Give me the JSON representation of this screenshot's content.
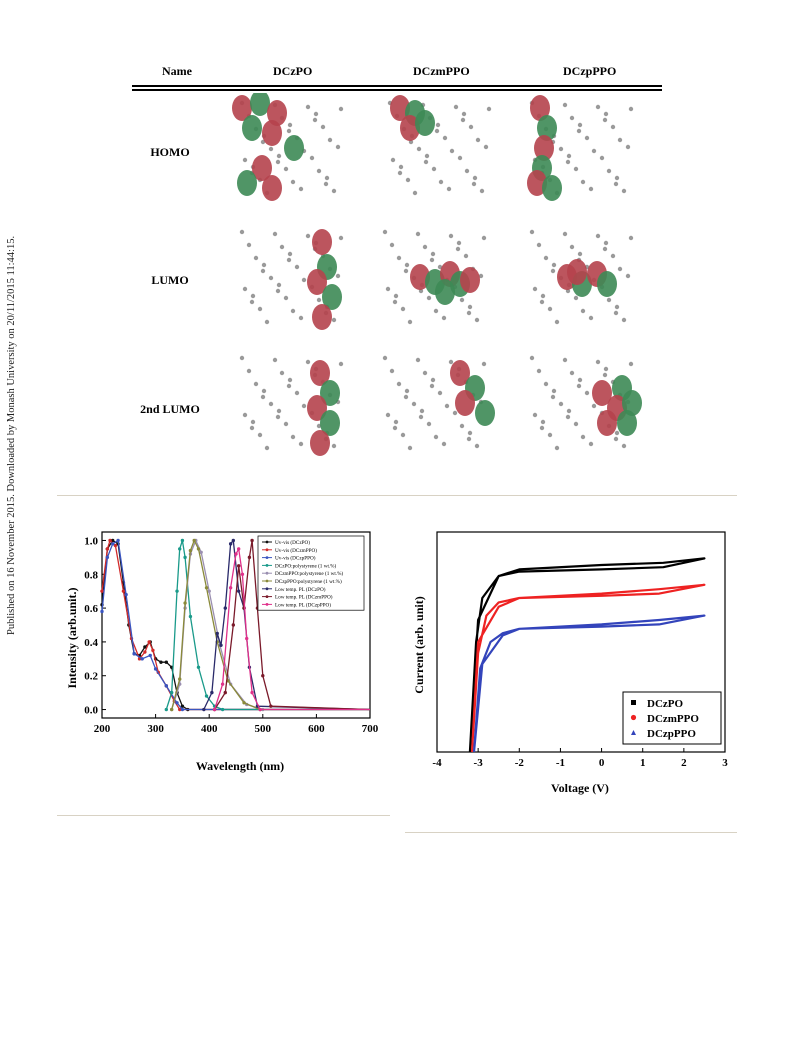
{
  "side_note": "Published on 16 November 2015. Downloaded by Monash University on 20/11/2015 11:44:15.",
  "table": {
    "headers": [
      "Name",
      "DCzPO",
      "DCzmPPO",
      "DCzpPPO"
    ],
    "rows": [
      "HOMO",
      "LUMO",
      "2nd LUMO"
    ]
  },
  "colors": {
    "lobe_red": "#b5424c",
    "lobe_green": "#3d8a55",
    "atom": "#9a9a9a",
    "rule": "#d8d2c4"
  },
  "chart_data": [
    {
      "type": "line",
      "xlabel": "Wavelength (nm)",
      "ylabel": "Intensity (arb.unit.)",
      "xlim": [
        200,
        700
      ],
      "ylim": [
        -0.05,
        1.05
      ],
      "xticks": [
        200,
        300,
        400,
        500,
        600,
        700
      ],
      "yticks": [
        0.0,
        0.2,
        0.4,
        0.6,
        0.8,
        1.0
      ],
      "legend_position": "top-right",
      "series": [
        {
          "name": "Uv-vis (DCzPO)",
          "color": "#111111",
          "x": [
            200,
            210,
            220,
            230,
            240,
            250,
            260,
            270,
            280,
            290,
            300,
            310,
            320,
            330,
            340,
            350,
            360,
            700
          ],
          "y": [
            0.62,
            0.95,
            1.0,
            0.98,
            0.75,
            0.5,
            0.33,
            0.32,
            0.37,
            0.4,
            0.3,
            0.28,
            0.28,
            0.25,
            0.1,
            0.02,
            0.0,
            0.0
          ]
        },
        {
          "name": "Uv-vis (DCzmPPO)",
          "color": "#d22a2a",
          "x": [
            200,
            210,
            215,
            225,
            240,
            255,
            270,
            280,
            288,
            295,
            305,
            320,
            335,
            345,
            700
          ],
          "y": [
            0.7,
            0.95,
            1.0,
            0.97,
            0.7,
            0.42,
            0.3,
            0.34,
            0.4,
            0.35,
            0.22,
            0.14,
            0.05,
            0.0,
            0.0
          ]
        },
        {
          "name": "Uv-vis (DCzpPPO)",
          "color": "#3a55c0",
          "x": [
            200,
            210,
            220,
            230,
            245,
            260,
            275,
            290,
            300,
            320,
            340,
            350,
            700
          ],
          "y": [
            0.58,
            0.9,
            0.98,
            1.0,
            0.68,
            0.33,
            0.3,
            0.32,
            0.24,
            0.14,
            0.04,
            0.0,
            0.0
          ]
        },
        {
          "name": "DCzPO:polystyrene (1 wt.%)",
          "color": "#1a9a8a",
          "x": [
            320,
            330,
            340,
            345,
            350,
            355,
            365,
            380,
            395,
            410,
            425,
            700
          ],
          "y": [
            0.0,
            0.1,
            0.7,
            0.95,
            1.0,
            0.9,
            0.55,
            0.25,
            0.08,
            0.02,
            0.0,
            0.0
          ]
        },
        {
          "name": "DCzmPPO:polystyrene (1 wt.%)",
          "color": "#9a8fb0",
          "x": [
            330,
            345,
            355,
            365,
            375,
            385,
            400,
            420,
            440,
            470,
            500,
            700
          ],
          "y": [
            0.0,
            0.15,
            0.6,
            0.92,
            1.0,
            0.93,
            0.7,
            0.38,
            0.15,
            0.03,
            0.0,
            0.0
          ]
        },
        {
          "name": "DCzpPPO:polystyrene (1 wt.%)",
          "color": "#8a8a3a",
          "x": [
            330,
            345,
            355,
            365,
            372,
            380,
            395,
            415,
            435,
            465,
            495,
            700
          ],
          "y": [
            0.0,
            0.18,
            0.63,
            0.94,
            1.0,
            0.95,
            0.72,
            0.4,
            0.17,
            0.04,
            0.0,
            0.0
          ]
        },
        {
          "name": "Low temp. PL (DCzPO)",
          "color": "#2a2a6a",
          "x": [
            390,
            405,
            415,
            422,
            430,
            440,
            445,
            455,
            465,
            475,
            490,
            700
          ],
          "y": [
            0.0,
            0.1,
            0.45,
            0.38,
            0.6,
            0.98,
            1.0,
            0.7,
            0.6,
            0.25,
            0.02,
            0.0
          ]
        },
        {
          "name": "Low temp. PL (DCzmPPO)",
          "color": "#7a1a2a",
          "x": [
            410,
            430,
            445,
            455,
            465,
            475,
            480,
            490,
            500,
            515,
            700
          ],
          "y": [
            0.0,
            0.1,
            0.5,
            0.85,
            0.6,
            0.9,
            1.0,
            0.6,
            0.2,
            0.02,
            0.0
          ]
        },
        {
          "name": "Low temp. PL (DCzpPPO)",
          "color": "#e0308a",
          "x": [
            410,
            425,
            440,
            450,
            455,
            462,
            470,
            480,
            495,
            700
          ],
          "y": [
            0.0,
            0.15,
            0.72,
            0.92,
            0.95,
            0.8,
            0.42,
            0.1,
            0.0,
            0.0
          ]
        }
      ]
    },
    {
      "type": "line",
      "xlabel": "Voltage (V)",
      "ylabel": "Current (arb. unit)",
      "xlim": [
        -4,
        3
      ],
      "ylim": [
        0,
        1
      ],
      "xticks": [
        -4,
        -3,
        -2,
        -1,
        0,
        1,
        2,
        3
      ],
      "legend_position": "bottom-right",
      "series": [
        {
          "name": "DCzPO",
          "color": "#000000",
          "x": [
            -3.2,
            -3.05,
            -2.9,
            -2.5,
            -2.0,
            0.0,
            1.5,
            2.5,
            1.5,
            0.0,
            -2.0,
            -2.5,
            -3.0,
            -3.2
          ],
          "y": [
            0.0,
            0.5,
            0.7,
            0.8,
            0.82,
            0.83,
            0.84,
            0.88,
            0.86,
            0.85,
            0.83,
            0.8,
            0.6,
            0.0
          ]
        },
        {
          "name": "DCzmPPO",
          "color": "#ee2222",
          "x": [
            -3.15,
            -3.0,
            -2.8,
            -2.5,
            -2.0,
            0.0,
            1.4,
            2.5,
            1.4,
            0.0,
            -2.0,
            -2.5,
            -3.0,
            -3.15
          ],
          "y": [
            0.0,
            0.45,
            0.62,
            0.68,
            0.7,
            0.71,
            0.72,
            0.76,
            0.74,
            0.72,
            0.7,
            0.66,
            0.5,
            0.0
          ]
        },
        {
          "name": "DCzpPPO",
          "color": "#3344bb",
          "x": [
            -3.1,
            -2.95,
            -2.7,
            -2.4,
            -2.0,
            0.0,
            1.4,
            2.5,
            1.4,
            0.0,
            -2.0,
            -2.4,
            -2.9,
            -3.1
          ],
          "y": [
            0.0,
            0.38,
            0.5,
            0.54,
            0.56,
            0.57,
            0.58,
            0.62,
            0.6,
            0.58,
            0.56,
            0.53,
            0.4,
            0.0
          ]
        }
      ]
    }
  ]
}
